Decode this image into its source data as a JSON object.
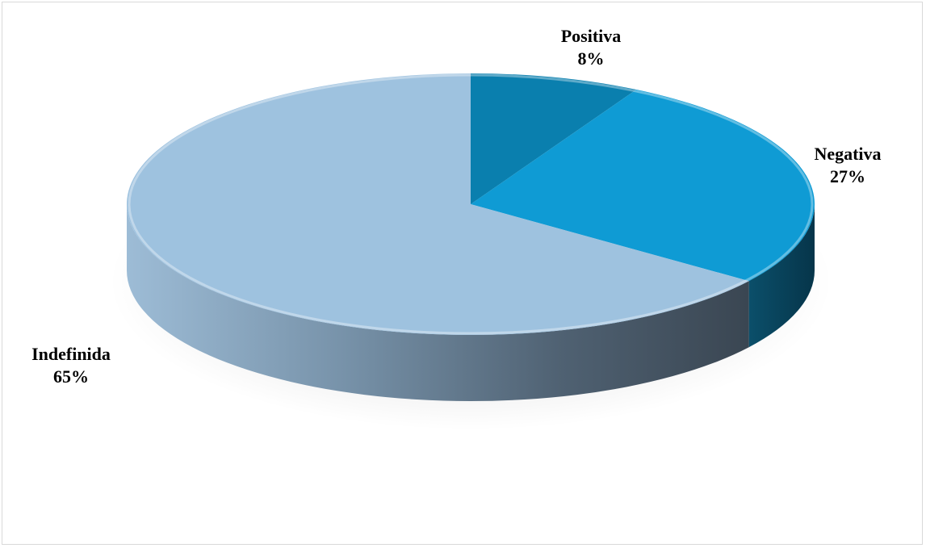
{
  "chart_data": {
    "type": "pie",
    "style": "3d",
    "title": "",
    "slices": [
      {
        "label": "Positiva",
        "percent_label": "8%",
        "value": 8,
        "color": "#0a7fae"
      },
      {
        "label": "Negativa",
        "percent_label": "27%",
        "value": 27,
        "color": "#0f9bd4"
      },
      {
        "label": "Indefinida",
        "percent_label": "65%",
        "value": 65,
        "color": "#9ec2df"
      }
    ],
    "legend": false
  }
}
